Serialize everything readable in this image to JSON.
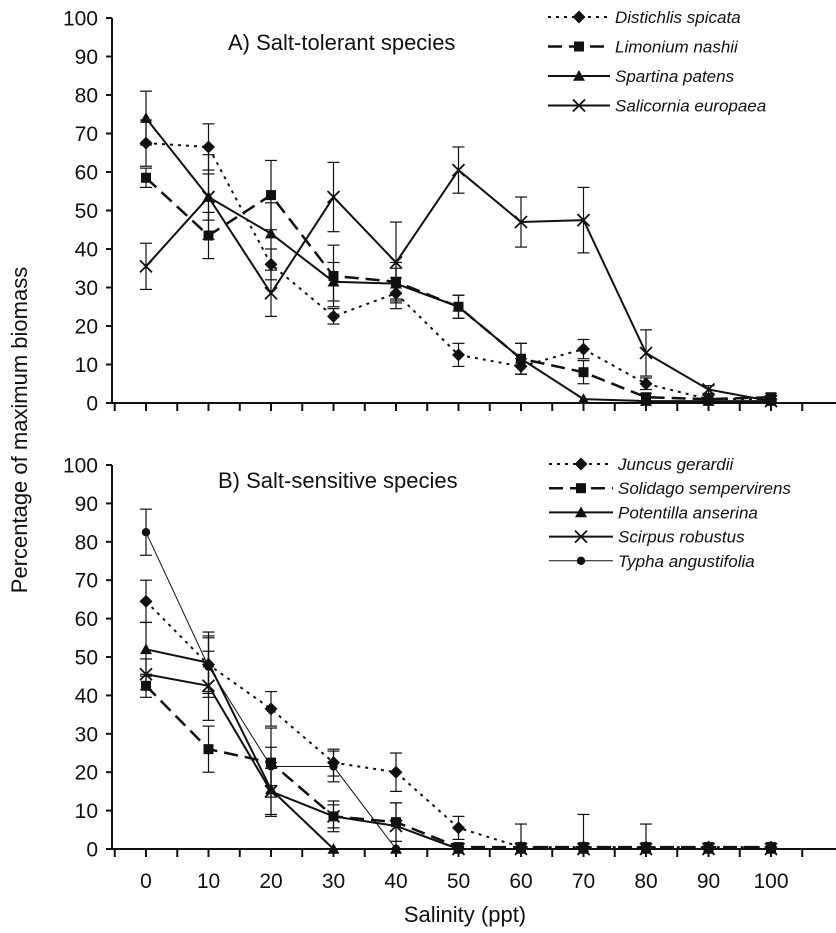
{
  "chart_data": {
    "type": "line",
    "ylabel": "Percentage of maximum biomass",
    "xlabel": "Salinity (ppt)",
    "x": [
      0,
      10,
      20,
      30,
      40,
      50,
      60,
      70,
      80,
      90,
      100
    ],
    "xticks": [
      "0",
      "10",
      "20",
      "30",
      "40",
      "50",
      "60",
      "70",
      "80",
      "90",
      "100"
    ],
    "ylim": [
      0,
      100
    ],
    "yticks": [
      "0",
      "10",
      "20",
      "30",
      "40",
      "50",
      "60",
      "70",
      "80",
      "90",
      "100"
    ],
    "panels": [
      {
        "title": "A) Salt-tolerant species",
        "series": [
          {
            "name": "Distichlis spicata",
            "marker": "diamond",
            "dash": "dotted",
            "values": [
              67.5,
              66.5,
              36,
              22.5,
              28.5,
              12.5,
              9.5,
              14,
              5,
              1,
              1
            ],
            "errors": [
              6,
              6,
              4,
              2,
              4,
              3,
              2,
              2.5,
              1.5,
              0.5,
              0.5
            ]
          },
          {
            "name": "Limonium nashii",
            "marker": "square",
            "dash": "dashed",
            "values": [
              58.5,
              43.5,
              54,
              33,
              31.5,
              25,
              11.5,
              8,
              1.5,
              1,
              1.5
            ],
            "errors": [
              2.5,
              6,
              9,
              8,
              5,
              3,
              4,
              3,
              1,
              0.5,
              1
            ]
          },
          {
            "name": "Spartina patens",
            "marker": "triangle",
            "dash": "solid",
            "values": [
              74,
              53.5,
              44,
              31.5,
              31,
              25,
              11.5,
              1,
              0.5,
              0.5,
              0.5
            ],
            "errors": [
              7,
              11,
              8,
              5,
              4,
              3,
              4,
              0.5,
              0.5,
              0.3,
              0.3
            ]
          },
          {
            "name": "Salicornia europaea",
            "marker": "cross",
            "dash": "solid",
            "values": [
              35.5,
              53.5,
              28.5,
              53.5,
              36.5,
              60.5,
              47,
              47.5,
              13,
              3.5,
              0.5
            ],
            "errors": [
              6,
              6,
              6,
              9,
              10.5,
              6,
              6.5,
              8.5,
              6,
              1,
              0.5
            ]
          }
        ]
      },
      {
        "title": "B) Salt-sensitive species",
        "series": [
          {
            "name": "Juncus gerardii",
            "marker": "diamond",
            "dash": "dotted",
            "values": [
              64.5,
              48,
              36.5,
              22.5,
              20,
              5.5,
              0.5,
              0.5,
              0.5,
              0.5,
              0.5
            ],
            "errors": [
              5.5,
              7,
              4.5,
              3.5,
              5,
              3,
              6,
              8.5,
              6,
              0.5,
              0.5
            ]
          },
          {
            "name": "Solidago sempervirens",
            "marker": "square",
            "dash": "dashed",
            "values": [
              42.5,
              26,
              22.5,
              8.5,
              7,
              0.5,
              0.5,
              0.5,
              0.5,
              0.5,
              0.5
            ],
            "errors": [
              3,
              6,
              9,
              3,
              5,
              0.5,
              0.5,
              0.5,
              0.5,
              0.5,
              0.5
            ]
          },
          {
            "name": "Potentilla anserina",
            "marker": "triangle",
            "dash": "solid",
            "values": [
              52,
              48.5,
              15.5,
              0,
              0,
              0,
              0,
              0,
              0,
              0,
              0
            ],
            "errors": [
              7,
              8,
              7,
              0,
              0,
              0,
              0,
              0,
              0,
              0,
              0
            ]
          },
          {
            "name": "Scirpus robustus",
            "marker": "cross",
            "dash": "solid",
            "values": [
              45.5,
              42.5,
              15,
              8.5,
              6,
              0,
              0,
              0,
              0,
              0,
              0
            ],
            "errors": [
              4,
              9,
              6,
              4,
              6,
              0,
              0,
              0,
              0,
              0,
              0
            ]
          },
          {
            "name": "Typha angustifolia",
            "marker": "circle",
            "dash": "thin",
            "values": [
              82.5,
              47.5,
              21.5,
              21.5,
              0,
              0,
              0,
              0,
              0,
              0,
              0
            ],
            "errors": [
              6,
              8,
              5,
              4,
              0,
              0,
              0,
              0,
              0,
              0,
              0
            ]
          }
        ]
      }
    ]
  }
}
